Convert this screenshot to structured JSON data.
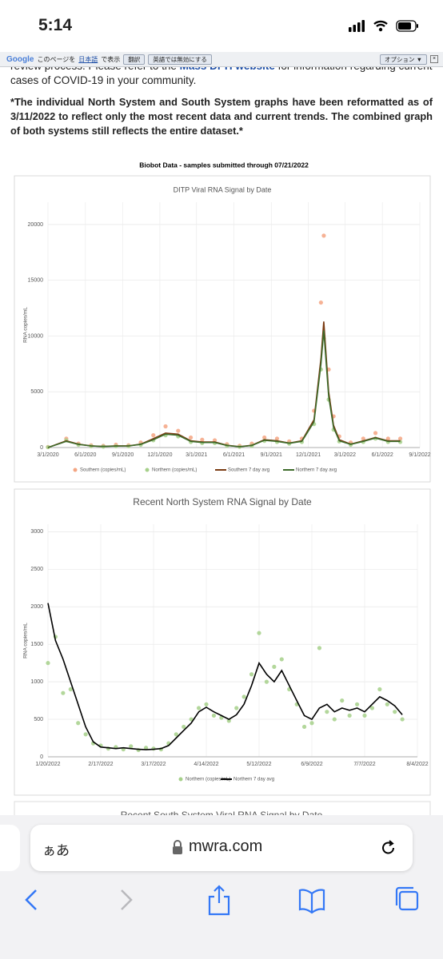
{
  "status_bar": {
    "time": "5:14"
  },
  "translate_bar": {
    "brand": "Google",
    "prefix": "このページを",
    "language": "日本語",
    "suffix": "で表示",
    "translate_button": "翻訳",
    "disable_button": "英語では無効にする",
    "options_button": "オプション ▼"
  },
  "content": {
    "intro": {
      "before": "review process. Please refer to the ",
      "link": "Mass DPH website",
      "after": " for information regarding current cases of COVID-19 in your community."
    },
    "notice": "*The individual North System and South System graphs have been reformatted as of 3/11/2022 to reflect only the most recent data and current trends.  The combined graph of both systems still reflects the entire dataset.*",
    "caption": "Biobot Data - samples submitted through 07/21/2022",
    "next_chart_title": "Recent South System Viral RNA Signal by Date"
  },
  "chart_data": [
    {
      "type": "line",
      "title": "DITP Viral RNA Signal by Date",
      "ylabel": "RNA copies/mL",
      "grid": true,
      "x": [
        "3/1/2020",
        "4/15/2020",
        "5/15/2020",
        "6/15/2020",
        "7/15/2020",
        "8/15/2020",
        "9/15/2020",
        "10/15/2020",
        "11/15/2020",
        "12/15/2020",
        "1/15/2021",
        "2/15/2021",
        "3/15/2021",
        "4/15/2021",
        "5/15/2021",
        "6/15/2021",
        "7/15/2021",
        "8/15/2021",
        "9/15/2021",
        "10/15/2021",
        "11/15/2021",
        "12/15/2021",
        "1/1/2022",
        "1/8/2022",
        "1/20/2022",
        "2/1/2022",
        "2/15/2022",
        "3/15/2022",
        "4/15/2022",
        "5/15/2022",
        "6/15/2022",
        "7/15/2022"
      ],
      "xlim": [
        "3/1/2020",
        "9/1/2022"
      ],
      "xticks": [
        "3/1/2020",
        "6/1/2020",
        "9/1/2020",
        "12/1/2020",
        "3/1/2021",
        "6/1/2021",
        "9/1/2021",
        "12/1/2021",
        "3/1/2022",
        "6/1/2022",
        "9/1/2022"
      ],
      "ylim": [
        0,
        22000
      ],
      "yticks": [
        0,
        5000,
        10000,
        15000,
        20000
      ],
      "series": [
        {
          "name": "Southern (copies/mL)",
          "kind": "scatter",
          "color": "#f4a582",
          "values": [
            50,
            800,
            350,
            200,
            150,
            250,
            200,
            450,
            1100,
            1900,
            1500,
            900,
            700,
            650,
            300,
            150,
            350,
            900,
            800,
            550,
            800,
            3300,
            13000,
            19000,
            7000,
            2800,
            1000,
            450,
            800,
            1300,
            800,
            800
          ]
        },
        {
          "name": "Northern (copies/mL)",
          "kind": "scatter",
          "color": "#a6d08a",
          "values": [
            30,
            650,
            250,
            120,
            80,
            120,
            120,
            250,
            650,
            1100,
            1000,
            500,
            400,
            400,
            160,
            60,
            160,
            600,
            500,
            350,
            500,
            2100,
            7000,
            9800,
            4300,
            1600,
            550,
            250,
            500,
            800,
            500,
            500
          ]
        },
        {
          "name": "Southern 7 day avg",
          "kind": "line",
          "color": "#7a3b12",
          "values": [
            0,
            600,
            300,
            150,
            100,
            150,
            150,
            300,
            800,
            1300,
            1200,
            600,
            500,
            500,
            200,
            80,
            200,
            700,
            600,
            400,
            600,
            2500,
            8000,
            11300,
            5000,
            2000,
            700,
            300,
            600,
            900,
            600,
            600
          ]
        },
        {
          "name": "Northern 7 day avg",
          "kind": "line",
          "color": "#3d6b2a",
          "values": [
            0,
            550,
            280,
            140,
            90,
            130,
            140,
            280,
            700,
            1200,
            1100,
            550,
            450,
            450,
            180,
            70,
            180,
            650,
            550,
            380,
            550,
            2300,
            7500,
            10500,
            4600,
            1800,
            600,
            280,
            550,
            850,
            550,
            550
          ]
        }
      ]
    },
    {
      "type": "line",
      "title": "Recent North System RNA Signal by Date",
      "ylabel": "RNA copies/mL",
      "grid": true,
      "x": [
        "1/20/2022",
        "1/24/2022",
        "1/28/2022",
        "2/1/2022",
        "2/5/2022",
        "2/9/2022",
        "2/13/2022",
        "2/17/2022",
        "2/21/2022",
        "2/25/2022",
        "3/1/2022",
        "3/5/2022",
        "3/9/2022",
        "3/13/2022",
        "3/17/2022",
        "3/21/2022",
        "3/25/2022",
        "3/29/2022",
        "4/2/2022",
        "4/6/2022",
        "4/10/2022",
        "4/14/2022",
        "4/18/2022",
        "4/22/2022",
        "4/26/2022",
        "4/30/2022",
        "5/4/2022",
        "5/8/2022",
        "5/12/2022",
        "5/16/2022",
        "5/20/2022",
        "5/24/2022",
        "5/28/2022",
        "6/1/2022",
        "6/5/2022",
        "6/9/2022",
        "6/13/2022",
        "6/17/2022",
        "6/21/2022",
        "6/25/2022",
        "6/29/2022",
        "7/3/2022",
        "7/7/2022",
        "7/11/2022",
        "7/15/2022",
        "7/19/2022",
        "7/23/2022",
        "7/27/2022"
      ],
      "xlim": [
        "1/20/2022",
        "8/4/2022"
      ],
      "xticks": [
        "1/20/2022",
        "2/17/2022",
        "3/17/2022",
        "4/14/2022",
        "5/12/2022",
        "6/9/2022",
        "7/7/2022",
        "8/4/2022"
      ],
      "ylim": [
        0,
        3100
      ],
      "yticks": [
        0,
        500,
        1000,
        1500,
        2000,
        2500,
        3000
      ],
      "series": [
        {
          "name": "Northern (copies/mL)",
          "kind": "scatter",
          "color": "#a6d08a",
          "values": [
            1250,
            1600,
            850,
            900,
            450,
            300,
            180,
            150,
            110,
            130,
            100,
            140,
            90,
            120,
            110,
            100,
            180,
            300,
            400,
            500,
            650,
            700,
            550,
            520,
            480,
            650,
            800,
            1100,
            1650,
            1000,
            1200,
            1300,
            900,
            700,
            400,
            450,
            1450,
            600,
            500,
            750,
            550,
            700,
            550,
            650,
            900,
            700,
            600,
            500
          ]
        },
        {
          "name": "Northern 7 day avg",
          "kind": "line",
          "color": "#000000",
          "values": [
            2050,
            1550,
            1300,
            1000,
            700,
            400,
            200,
            130,
            120,
            110,
            120,
            110,
            100,
            95,
            100,
            110,
            150,
            250,
            350,
            450,
            600,
            660,
            600,
            550,
            500,
            560,
            700,
            950,
            1250,
            1100,
            1000,
            1150,
            950,
            750,
            550,
            500,
            650,
            700,
            600,
            650,
            620,
            650,
            600,
            700,
            800,
            750,
            680,
            560
          ]
        }
      ]
    }
  ],
  "browser": {
    "text_size": "ぁあ",
    "url": "mwra.com"
  }
}
